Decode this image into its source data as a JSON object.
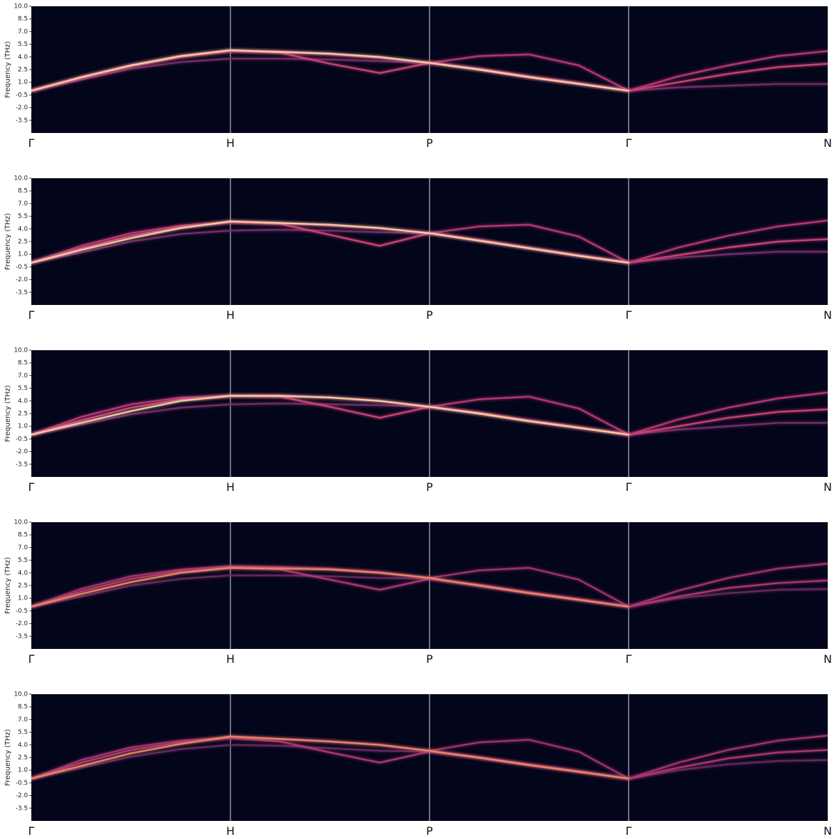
{
  "chart_data": [
    {
      "type": "line",
      "ylabel": "Frequency (THz)",
      "xlim": [
        0,
        4
      ],
      "ylim": [
        -5,
        10
      ],
      "yticks": [
        {
          "value": 10,
          "label": "10.0"
        },
        8.5,
        {
          "value": 7,
          "label": "7.0"
        },
        5.5,
        {
          "value": 4,
          "label": "4.0"
        },
        2.5,
        {
          "value": 1,
          "label": "1.0"
        },
        -0.5,
        {
          "value": -2,
          "label": "-2.0"
        },
        -3.5
      ],
      "xticks": [
        {
          "value": 0,
          "label": "Γ"
        },
        {
          "value": 1,
          "label": "H"
        },
        {
          "value": 2,
          "label": "P"
        },
        {
          "value": 3,
          "label": "Γ"
        },
        {
          "value": 4,
          "label": "N"
        }
      ],
      "x": [
        0,
        0.25,
        0.5,
        0.75,
        1,
        1.25,
        1.5,
        1.75,
        2,
        2.25,
        2.5,
        2.75,
        3,
        3.25,
        3.5,
        3.75,
        4
      ],
      "series": [
        {
          "color": "#7b2f6a",
          "values": [
            0,
            1.3,
            2.6,
            3.4,
            3.8,
            3.8,
            3.7,
            3.5,
            3.3,
            2.5,
            1.6,
            0.8,
            0,
            0.4,
            0.6,
            0.8,
            0.8
          ]
        },
        {
          "color": "#d8457a",
          "values": [
            0,
            1.5,
            2.9,
            4.0,
            4.7,
            4.5,
            3.2,
            2.1,
            3.3,
            2.6,
            1.7,
            0.9,
            0,
            1.0,
            2.0,
            2.8,
            3.2
          ]
        },
        {
          "color": "#c23a78",
          "values": [
            0,
            1.6,
            3.0,
            4.1,
            4.7,
            4.6,
            4.3,
            3.9,
            3.3,
            4.1,
            4.3,
            3.0,
            0,
            1.7,
            3.0,
            4.1,
            4.7
          ]
        },
        {
          "color": "#fbd3a8",
          "values": [
            0,
            1.6,
            3.0,
            4.1,
            4.8,
            4.6,
            4.4,
            4.0,
            3.3,
            2.5,
            1.6,
            0.8,
            0,
            null,
            null,
            null,
            null
          ]
        }
      ]
    },
    {
      "type": "line",
      "ylabel": "Frequency (THz)",
      "xlim": [
        0,
        4
      ],
      "ylim": [
        -5,
        10
      ],
      "yticks": [
        {
          "value": 10,
          "label": "10.0"
        },
        8.5,
        {
          "value": 7,
          "label": "7.0"
        },
        5.5,
        {
          "value": 4,
          "label": "4.0"
        },
        2.5,
        {
          "value": 1,
          "label": "1.0"
        },
        -0.5,
        {
          "value": -2,
          "label": "-2.0"
        },
        -3.5
      ],
      "xticks": [
        {
          "value": 0,
          "label": "Γ"
        },
        {
          "value": 1,
          "label": "H"
        },
        {
          "value": 2,
          "label": "P"
        },
        {
          "value": 3,
          "label": "Γ"
        },
        {
          "value": 4,
          "label": "N"
        }
      ],
      "x": [
        0,
        0.25,
        0.5,
        0.75,
        1,
        1.25,
        1.5,
        1.75,
        2,
        2.25,
        2.5,
        2.75,
        3,
        3.25,
        3.5,
        3.75,
        4
      ],
      "series": [
        {
          "color": "#7b2f6a",
          "values": [
            0,
            1.2,
            2.5,
            3.4,
            3.8,
            3.9,
            3.8,
            3.6,
            3.5,
            2.6,
            1.7,
            0.8,
            0,
            0.6,
            1.0,
            1.3,
            1.3
          ]
        },
        {
          "color": "#d8457a",
          "values": [
            0,
            1.7,
            3.2,
            4.2,
            4.8,
            4.6,
            3.3,
            2.0,
            3.5,
            2.7,
            1.8,
            0.9,
            0,
            0.9,
            1.8,
            2.5,
            2.8
          ]
        },
        {
          "color": "#c23a78",
          "values": [
            0,
            2.0,
            3.5,
            4.4,
            4.8,
            4.7,
            4.4,
            4.1,
            3.5,
            4.3,
            4.5,
            3.1,
            0,
            1.8,
            3.2,
            4.3,
            5.0
          ]
        },
        {
          "color": "#fbd3a8",
          "values": [
            0,
            1.5,
            2.9,
            4.1,
            4.9,
            4.7,
            4.5,
            4.1,
            3.5,
            2.6,
            1.7,
            0.8,
            0,
            null,
            null,
            null,
            null
          ]
        }
      ]
    },
    {
      "type": "line",
      "ylabel": "Frequency (THz)",
      "xlim": [
        0,
        4
      ],
      "ylim": [
        -5,
        10
      ],
      "yticks": [
        {
          "value": 10,
          "label": "10.0"
        },
        8.5,
        {
          "value": 7,
          "label": "7.0"
        },
        5.5,
        {
          "value": 4,
          "label": "4.0"
        },
        2.5,
        {
          "value": 1,
          "label": "1.0"
        },
        -0.5,
        {
          "value": -2,
          "label": "-2.0"
        },
        -3.5
      ],
      "xticks": [
        {
          "value": 0,
          "label": "Γ"
        },
        {
          "value": 1,
          "label": "H"
        },
        {
          "value": 2,
          "label": "P"
        },
        {
          "value": 3,
          "label": "Γ"
        },
        {
          "value": 4,
          "label": "N"
        }
      ],
      "x": [
        0,
        0.25,
        0.5,
        0.75,
        1,
        1.25,
        1.5,
        1.75,
        2,
        2.25,
        2.5,
        2.75,
        3,
        3.25,
        3.5,
        3.75,
        4
      ],
      "series": [
        {
          "color": "#7b2f6a",
          "values": [
            0,
            1.2,
            2.4,
            3.2,
            3.6,
            3.7,
            3.6,
            3.5,
            3.3,
            2.5,
            1.6,
            0.8,
            0,
            0.6,
            1.0,
            1.4,
            1.4
          ]
        },
        {
          "color": "#d8457a",
          "values": [
            0,
            1.7,
            3.2,
            4.2,
            4.6,
            4.5,
            3.3,
            2.0,
            3.3,
            2.6,
            1.7,
            0.9,
            0,
            1.0,
            2.0,
            2.7,
            3.0
          ]
        },
        {
          "color": "#c23a78",
          "values": [
            0,
            2.1,
            3.6,
            4.4,
            4.6,
            4.6,
            4.4,
            4.0,
            3.3,
            4.2,
            4.5,
            3.1,
            0,
            1.8,
            3.2,
            4.3,
            5.0
          ]
        },
        {
          "color": "#fbd3a8",
          "values": [
            0,
            1.4,
            2.8,
            4.0,
            4.6,
            4.6,
            4.4,
            4.0,
            3.3,
            2.5,
            1.6,
            0.8,
            0,
            null,
            null,
            null,
            null
          ]
        }
      ]
    },
    {
      "type": "line",
      "ylabel": "Frequency (THz)",
      "xlim": [
        0,
        4
      ],
      "ylim": [
        -5,
        10
      ],
      "yticks": [
        {
          "value": 10,
          "label": "10.0"
        },
        8.5,
        {
          "value": 7,
          "label": "7.0"
        },
        5.5,
        {
          "value": 4,
          "label": "4.0"
        },
        2.5,
        {
          "value": 1,
          "label": "1.0"
        },
        -0.5,
        {
          "value": -2,
          "label": "-2.0"
        },
        -3.5
      ],
      "xticks": [
        {
          "value": 0,
          "label": "Γ"
        },
        {
          "value": 1,
          "label": "H"
        },
        {
          "value": 2,
          "label": "P"
        },
        {
          "value": 3,
          "label": "Γ"
        },
        {
          "value": 4,
          "label": "N"
        }
      ],
      "x": [
        0,
        0.25,
        0.5,
        0.75,
        1,
        1.25,
        1.5,
        1.75,
        2,
        2.25,
        2.5,
        2.75,
        3,
        3.25,
        3.5,
        3.75,
        4
      ],
      "series": [
        {
          "color": "#6a2a62",
          "values": [
            0,
            1.2,
            2.5,
            3.3,
            3.7,
            3.7,
            3.6,
            3.4,
            3.3,
            2.4,
            1.6,
            0.8,
            0,
            1.0,
            1.6,
            2.0,
            2.1
          ]
        },
        {
          "color": "#b83a72",
          "values": [
            0,
            1.8,
            3.3,
            4.2,
            4.6,
            4.4,
            3.2,
            2.0,
            3.3,
            2.6,
            1.7,
            0.9,
            0,
            1.2,
            2.2,
            2.8,
            3.1
          ]
        },
        {
          "color": "#a8356e",
          "values": [
            0,
            2.1,
            3.6,
            4.4,
            4.8,
            4.7,
            4.5,
            4.1,
            3.4,
            4.3,
            4.6,
            3.2,
            0,
            1.9,
            3.4,
            4.5,
            5.1
          ]
        },
        {
          "color": "#f08a68",
          "values": [
            0,
            1.5,
            2.9,
            4.0,
            4.6,
            4.5,
            4.4,
            4.0,
            3.4,
            2.5,
            1.6,
            0.8,
            0,
            null,
            null,
            null,
            null
          ]
        }
      ]
    },
    {
      "type": "line",
      "ylabel": "Frequency (THz)",
      "xlim": [
        0,
        4
      ],
      "ylim": [
        -5,
        10
      ],
      "yticks": [
        {
          "value": 10,
          "label": "10.0"
        },
        8.5,
        {
          "value": 7,
          "label": "7.0"
        },
        5.5,
        {
          "value": 4,
          "label": "4.0"
        },
        2.5,
        {
          "value": 1,
          "label": "1.0"
        },
        -0.5,
        {
          "value": -2,
          "label": "-2.0"
        },
        -3.5
      ],
      "xticks": [
        {
          "value": 0,
          "label": "Γ"
        },
        {
          "value": 1,
          "label": "H"
        },
        {
          "value": 2,
          "label": "P"
        },
        {
          "value": 3,
          "label": "Γ"
        },
        {
          "value": 4,
          "label": "N"
        }
      ],
      "x": [
        0,
        0.25,
        0.5,
        0.75,
        1,
        1.25,
        1.5,
        1.75,
        2,
        2.25,
        2.5,
        2.75,
        3,
        3.25,
        3.5,
        3.75,
        4
      ],
      "series": [
        {
          "color": "#6a2a62",
          "values": [
            0,
            1.3,
            2.6,
            3.5,
            4.0,
            3.9,
            3.6,
            3.3,
            3.2,
            2.4,
            1.6,
            0.8,
            0,
            1.0,
            1.7,
            2.1,
            2.2
          ]
        },
        {
          "color": "#b83a72",
          "values": [
            0,
            1.9,
            3.4,
            4.3,
            4.8,
            4.4,
            3.1,
            1.9,
            3.2,
            2.5,
            1.7,
            0.9,
            0,
            1.3,
            2.4,
            3.1,
            3.4
          ]
        },
        {
          "color": "#a8356e",
          "values": [
            0,
            2.2,
            3.7,
            4.5,
            4.9,
            4.7,
            4.4,
            4.0,
            3.3,
            4.3,
            4.6,
            3.2,
            0,
            1.9,
            3.4,
            4.5,
            5.1
          ]
        },
        {
          "color": "#f08a68",
          "values": [
            0,
            1.5,
            3.0,
            4.1,
            5.0,
            4.7,
            4.4,
            4.0,
            3.3,
            2.5,
            1.6,
            0.8,
            0,
            null,
            null,
            null,
            null
          ]
        }
      ]
    }
  ]
}
